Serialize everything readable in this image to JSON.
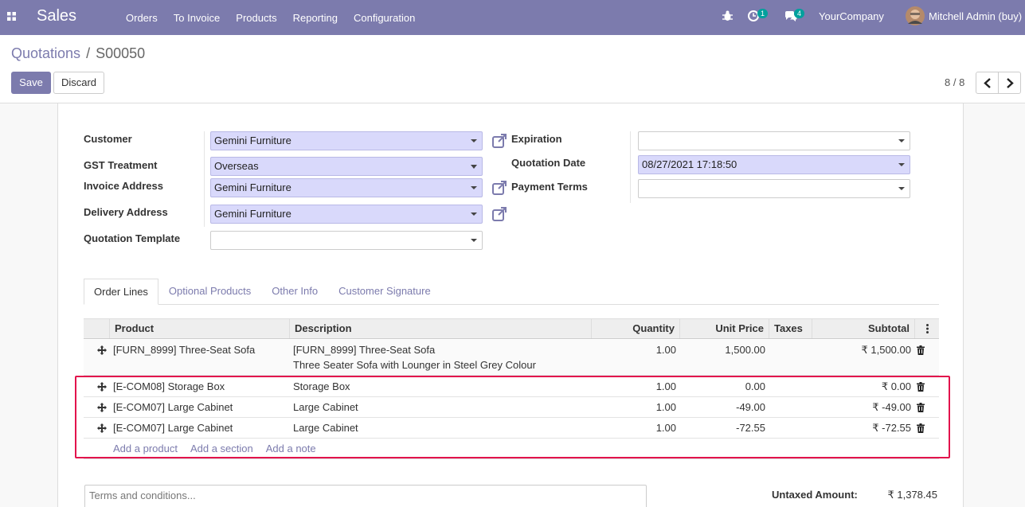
{
  "navbar": {
    "app": "Sales",
    "menu": [
      "Orders",
      "To Invoice",
      "Products",
      "Reporting",
      "Configuration"
    ],
    "activity_count": 1,
    "message_count": 4,
    "company": "YourCompany",
    "user": "Mitchell Admin (buy)"
  },
  "breadcrumb": {
    "parent": "Quotations",
    "separator": "/",
    "current": "S00050"
  },
  "buttons": {
    "save": "Save",
    "discard": "Discard"
  },
  "pager": "8 / 8",
  "form": {
    "left": [
      {
        "label": "Customer",
        "value": "Gemini Furniture"
      },
      {
        "label": "GST Treatment",
        "value": "Overseas"
      },
      {
        "label": "Invoice Address",
        "value": "Gemini Furniture"
      },
      {
        "label": "Delivery Address",
        "value": "Gemini Furniture"
      },
      {
        "label": "Quotation Template"
      }
    ],
    "right": [
      {
        "label": "Expiration"
      },
      {
        "label": "Quotation Date",
        "value": "08/27/2021 17:18:50"
      },
      {
        "label": "Payment Terms"
      }
    ]
  },
  "tabs": [
    "Order Lines",
    "Optional Products",
    "Other Info",
    "Customer Signature"
  ],
  "table": {
    "headers": [
      "Product",
      "Description",
      "Quantity",
      "Unit Price",
      "Taxes",
      "Subtotal"
    ],
    "rows": [
      {
        "product": "[FURN_8999] Three-Seat Sofa",
        "description": [
          "[FURN_8999] Three-Seat Sofa",
          "Three Seater Sofa with Lounger in Steel Grey Colour"
        ],
        "quantity": "1.00",
        "unit_price": "1,500.00",
        "subtotal": "₹ 1,500.00"
      },
      {
        "product": "[E-COM08] Storage Box",
        "description": [
          "Storage Box"
        ],
        "quantity": "1.00",
        "unit_price": "0.00",
        "subtotal": "₹ 0.00"
      },
      {
        "product": "[E-COM07] Large Cabinet",
        "description": [
          "Large Cabinet"
        ],
        "quantity": "1.00",
        "unit_price": "-49.00",
        "subtotal": "₹ -49.00"
      },
      {
        "product": "[E-COM07] Large Cabinet",
        "description": [
          "Large Cabinet"
        ],
        "quantity": "1.00",
        "unit_price": "-72.55",
        "subtotal": "₹ -72.55"
      }
    ],
    "add_links": [
      "Add a product",
      "Add a section",
      "Add a note"
    ]
  },
  "terms_placeholder": "Terms and conditions...",
  "totals": {
    "label": "Untaxed Amount:",
    "value": "₹ 1,378.45"
  }
}
